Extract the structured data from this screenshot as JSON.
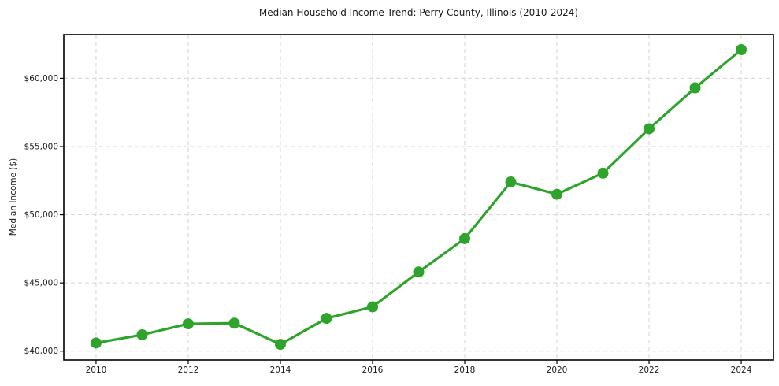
{
  "chart_data": {
    "type": "line",
    "title": "Median Household Income Trend: Perry County, Illinois (2010-2024)",
    "xlabel": "",
    "ylabel": "Median Income ($)",
    "x": [
      2010,
      2011,
      2012,
      2013,
      2014,
      2015,
      2016,
      2017,
      2018,
      2019,
      2020,
      2021,
      2022,
      2023,
      2024
    ],
    "values": [
      40600,
      41200,
      42000,
      42050,
      40500,
      42400,
      43250,
      45800,
      48250,
      52400,
      51500,
      53050,
      56300,
      59300,
      62100
    ],
    "series_name": "Median Household Income",
    "xlim": [
      2009.3,
      2024.7
    ],
    "ylim": [
      39350,
      63200
    ],
    "xticks": [
      {
        "value": 2010,
        "label": "2010"
      },
      {
        "value": 2012,
        "label": "2012"
      },
      {
        "value": 2014,
        "label": "2014"
      },
      {
        "value": 2016,
        "label": "2016"
      },
      {
        "value": 2018,
        "label": "2018"
      },
      {
        "value": 2020,
        "label": "2020"
      },
      {
        "value": 2022,
        "label": "2022"
      },
      {
        "value": 2024,
        "label": "2024"
      }
    ],
    "yticks": [
      {
        "value": 40000,
        "label": "$40,000"
      },
      {
        "value": 45000,
        "label": "$45,000"
      },
      {
        "value": 50000,
        "label": "$50,000"
      },
      {
        "value": 55000,
        "label": "$55,000"
      },
      {
        "value": 60000,
        "label": "$60,000"
      }
    ],
    "grid": true,
    "grid_style": "dashed",
    "legend": "none",
    "marker": "circle",
    "line_color": "#2fa42c",
    "grid_color": "#d4d4d4",
    "axis_color": "#000000",
    "text_color": "#1a1a1a",
    "background": "#ffffff"
  }
}
